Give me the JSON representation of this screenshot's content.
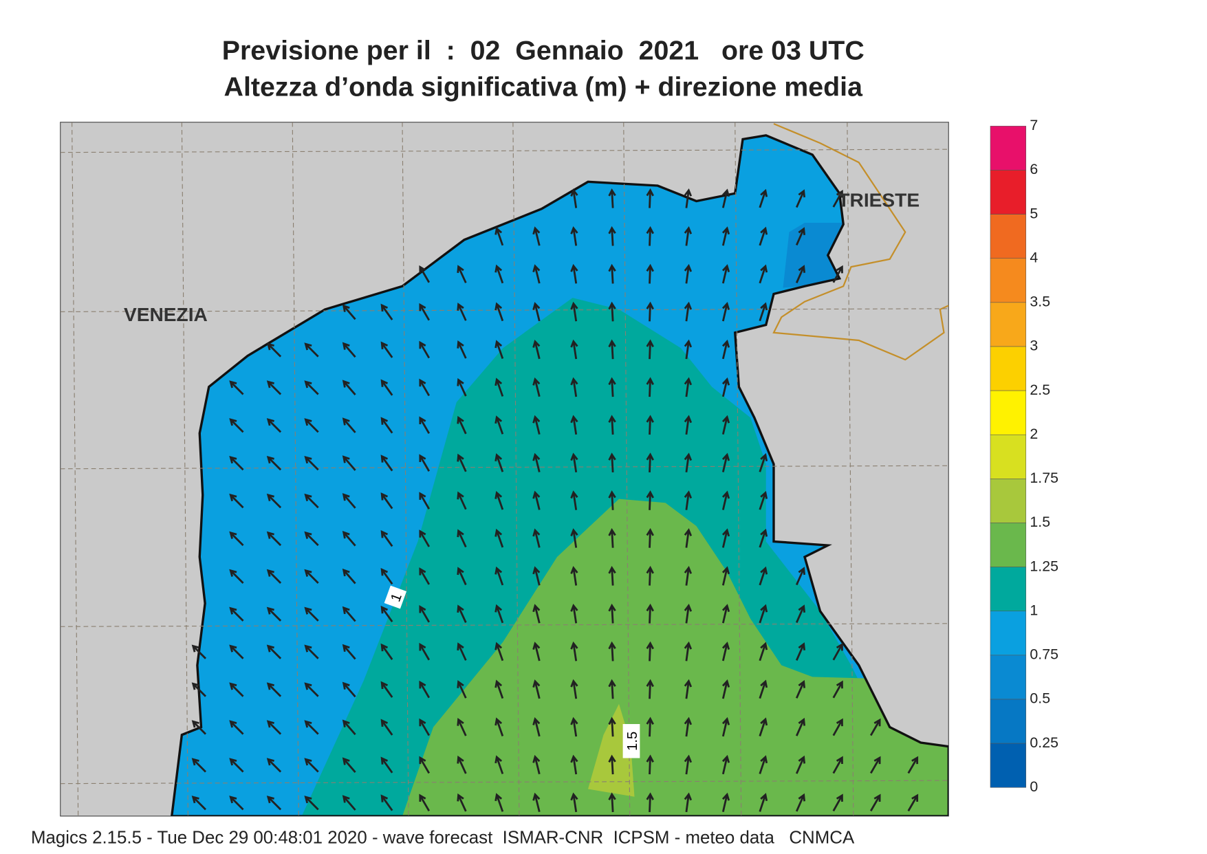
{
  "title": [
    "Previsione per il  :  02  Gennaio  2021   ore 03 UTC",
    "Altezza d’onda significativa (m) + direzione media"
  ],
  "map": {
    "places": [
      "VENEZIA",
      "TRIESTE"
    ],
    "contour_labels": [
      "1",
      "1.5"
    ]
  },
  "legend": {
    "levels": [
      7,
      6,
      5,
      4,
      3.5,
      3,
      2.5,
      2,
      1.75,
      1.5,
      1.25,
      1,
      0.75,
      0.5,
      0.25,
      0
    ],
    "colors": [
      "#e8106a",
      "#e81e2a",
      "#f06a20",
      "#f58a1e",
      "#f8a81a",
      "#fcd000",
      "#fff200",
      "#d8e020",
      "#a8c83c",
      "#6ab84c",
      "#00a99d",
      "#0aa0e0",
      "#0a8ad2",
      "#0678c4",
      "#0060b0"
    ]
  },
  "footer": "Magics 2.15.5 - Tue Dec 29 00:48:01 2020 - wave forecast  ISMAR-CNR  ICPSM - meteo data   CNMCA"
}
